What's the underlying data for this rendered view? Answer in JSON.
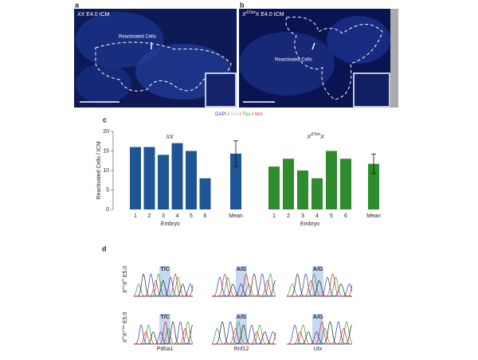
{
  "panel_a": {
    "label": "a",
    "title": [
      "XX",
      " E4.0 ICM"
    ],
    "annotation": "Reactivated Cells"
  },
  "panel_b": {
    "label": "b",
    "title": [
      "X",
      "ΔTsix",
      "X E4.0 ICM"
    ],
    "annotation": "Reactivated Cells"
  },
  "stain_legend": {
    "separator": " / ",
    "items": [
      {
        "text": "DAPI",
        "color": "#3333cc"
      },
      {
        "text": "Xist",
        "color": "#bbbbbb"
      },
      {
        "text": "Tsix",
        "color": "#33aa33"
      },
      {
        "text": "Atrx",
        "color": "#dd3333"
      }
    ]
  },
  "panel_c_label": "c",
  "chart_data": [
    {
      "type": "bar",
      "title": [
        "XX"
      ],
      "ylabel": "Reactivated Cells / ICM",
      "xlabel": "Embryo",
      "categories": [
        "1",
        "2",
        "3",
        "4",
        "5",
        "6"
      ],
      "values": [
        16,
        16,
        14,
        17,
        15,
        8
      ],
      "mean": {
        "label": "Mean",
        "value": 14.3,
        "error": 3.3
      },
      "color": "#1f5596",
      "ylim": [
        0,
        20
      ],
      "yticks": [
        0,
        5,
        10,
        15,
        20
      ]
    },
    {
      "type": "bar",
      "title": [
        "X",
        "ΔTsix",
        "X"
      ],
      "xlabel": "Embryo",
      "categories": [
        "1",
        "2",
        "3",
        "4",
        "5",
        "6"
      ],
      "values": [
        11,
        13,
        10,
        8,
        15,
        13
      ],
      "mean": {
        "label": "Mean",
        "value": 11.7,
        "error": 2.5
      },
      "color": "#2e8b2e",
      "ylim": [
        0,
        20
      ]
    }
  ],
  "panel_d": {
    "label": "d",
    "rows": [
      [
        "X",
        "ΔA",
        "X",
        "Fl",
        " E5.0"
      ],
      [
        "X",
        "Fl",
        "X",
        "ΔTsix",
        " E5.0"
      ]
    ],
    "genes": [
      "Pdha1",
      "Rnf12",
      "Utx"
    ],
    "snps": [
      [
        "T/C",
        "A/G",
        "A/G"
      ],
      [
        "T/C",
        "A/G",
        "A/G"
      ]
    ]
  }
}
